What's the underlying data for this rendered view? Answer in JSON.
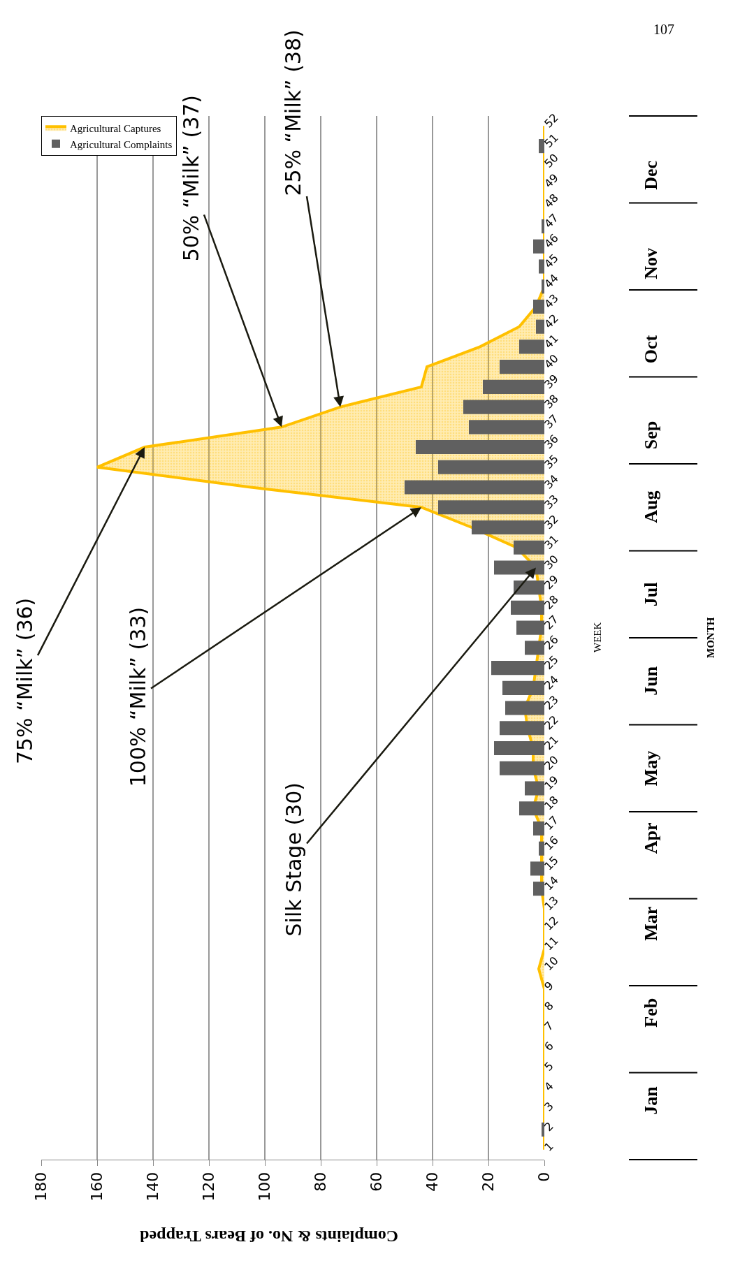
{
  "chart_data": {
    "type": "bar",
    "orientation": "horizontal",
    "xlabel": "Complaints & No. of Bears Trapped",
    "ylabel": "WEEK",
    "categories": [
      "52",
      "51",
      "50",
      "49",
      "48",
      "47",
      "46",
      "45",
      "44",
      "43",
      "42",
      "41",
      "40",
      "39",
      "38",
      "37",
      "36",
      "35",
      "34",
      "33",
      "32",
      "31",
      "30",
      "29",
      "28",
      "27",
      "26",
      "25",
      "24",
      "23",
      "22",
      "21",
      "20",
      "19",
      "18",
      "17",
      "16",
      "15",
      "14",
      "13",
      "12",
      "11",
      "10",
      "9",
      "8",
      "7",
      "6",
      "5",
      "4",
      "3",
      "2",
      "1"
    ],
    "series": [
      {
        "name": "Agricultural Captures",
        "type": "area",
        "color": "#ffc000",
        "values": [
          0,
          0,
          0,
          0,
          0,
          0,
          0,
          0,
          0,
          3,
          9,
          23,
          42,
          44,
          73,
          94,
          143,
          160,
          105,
          44,
          26,
          10,
          3,
          2,
          1,
          1,
          2,
          3,
          4,
          7,
          6,
          4,
          4,
          2,
          4,
          1,
          1,
          1,
          1,
          0,
          0,
          0,
          2,
          0,
          0,
          0,
          0,
          0,
          0,
          0,
          0,
          0
        ]
      },
      {
        "name": "Agricultural Complaints",
        "color": "#606060",
        "values": [
          0,
          2,
          0,
          0,
          0,
          1,
          4,
          2,
          1,
          4,
          3,
          9,
          16,
          22,
          29,
          27,
          46,
          38,
          50,
          38,
          26,
          11,
          18,
          11,
          12,
          10,
          7,
          19,
          15,
          14,
          16,
          18,
          16,
          7,
          9,
          4,
          2,
          5,
          4,
          0,
          0,
          0,
          0,
          0,
          0,
          0,
          0,
          0,
          0,
          0,
          1,
          0
        ]
      }
    ],
    "xlim": [
      180,
      0
    ],
    "xticks": [
      0,
      20,
      40,
      60,
      80,
      100,
      120,
      140,
      160,
      180
    ],
    "grid": "x",
    "legend": "top left",
    "annotations": [
      "Jan",
      "Feb",
      "Mar",
      "Apr",
      "May",
      "Jun",
      "Jul",
      "Aug",
      "Sep",
      "Oct",
      "Nov",
      "Dec",
      "MONTH",
      "107",
      {
        "text": "75% “Milk” (36)",
        "x": 143,
        "y": "36"
      },
      {
        "text": "100% “Milk” (33)",
        "x": 44,
        "y": "33"
      },
      {
        "text": "Silk Stage (30)",
        "x": 3,
        "y": "30"
      },
      {
        "text": "50% “Milk” (37)",
        "x": 94,
        "y": "37"
      },
      {
        "text": "25% “Milk” (38)",
        "x": 73,
        "y": "38"
      }
    ]
  }
}
